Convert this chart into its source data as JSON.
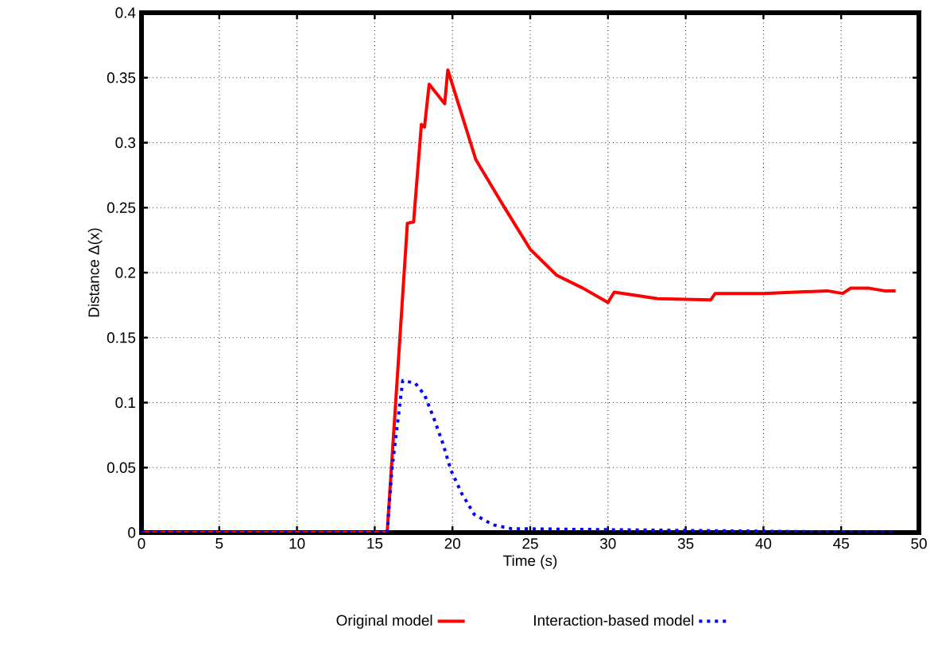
{
  "chart_data": {
    "type": "line",
    "xlabel": "Time (s)",
    "ylabel": "Distance Δ(x)",
    "xlim": [
      0,
      50
    ],
    "ylim": [
      0,
      0.4
    ],
    "xticks": [
      0,
      5,
      10,
      15,
      20,
      25,
      30,
      35,
      40,
      45,
      50
    ],
    "yticks": [
      0,
      0.05,
      0.1,
      0.15,
      0.2,
      0.25,
      0.3,
      0.35,
      0.4
    ],
    "grid": true,
    "legend": "bottom",
    "series": [
      {
        "name": "Original model",
        "color": "#ff0000",
        "line_style": "solid",
        "x": [
          0,
          15.8,
          17.1,
          17.5,
          18.0,
          18.2,
          18.5,
          19.5,
          19.7,
          21.5,
          23.3,
          25.0,
          26.7,
          28.4,
          30.0,
          30.4,
          33.2,
          36.6,
          36.9,
          40.0,
          44.1,
          45.1,
          45.6,
          46.8,
          47.8,
          48.5
        ],
        "values": [
          0,
          0,
          0.238,
          0.239,
          0.314,
          0.312,
          0.345,
          0.33,
          0.356,
          0.287,
          0.251,
          0.218,
          0.198,
          0.188,
          0.177,
          0.185,
          0.18,
          0.179,
          0.184,
          0.184,
          0.186,
          0.184,
          0.188,
          0.188,
          0.186,
          0.186
        ]
      },
      {
        "name": "Interaction-based model",
        "color": "#0000ff",
        "line_style": "dotted",
        "x": [
          0,
          15.8,
          16.1,
          16.8,
          17.6,
          18.2,
          18.8,
          19.4,
          19.9,
          20.6,
          21.4,
          22.6,
          23.8,
          48.5
        ],
        "values": [
          0,
          0,
          0.048,
          0.117,
          0.115,
          0.106,
          0.088,
          0.068,
          0.048,
          0.03,
          0.014,
          0.006,
          0.003,
          0
        ]
      }
    ]
  }
}
